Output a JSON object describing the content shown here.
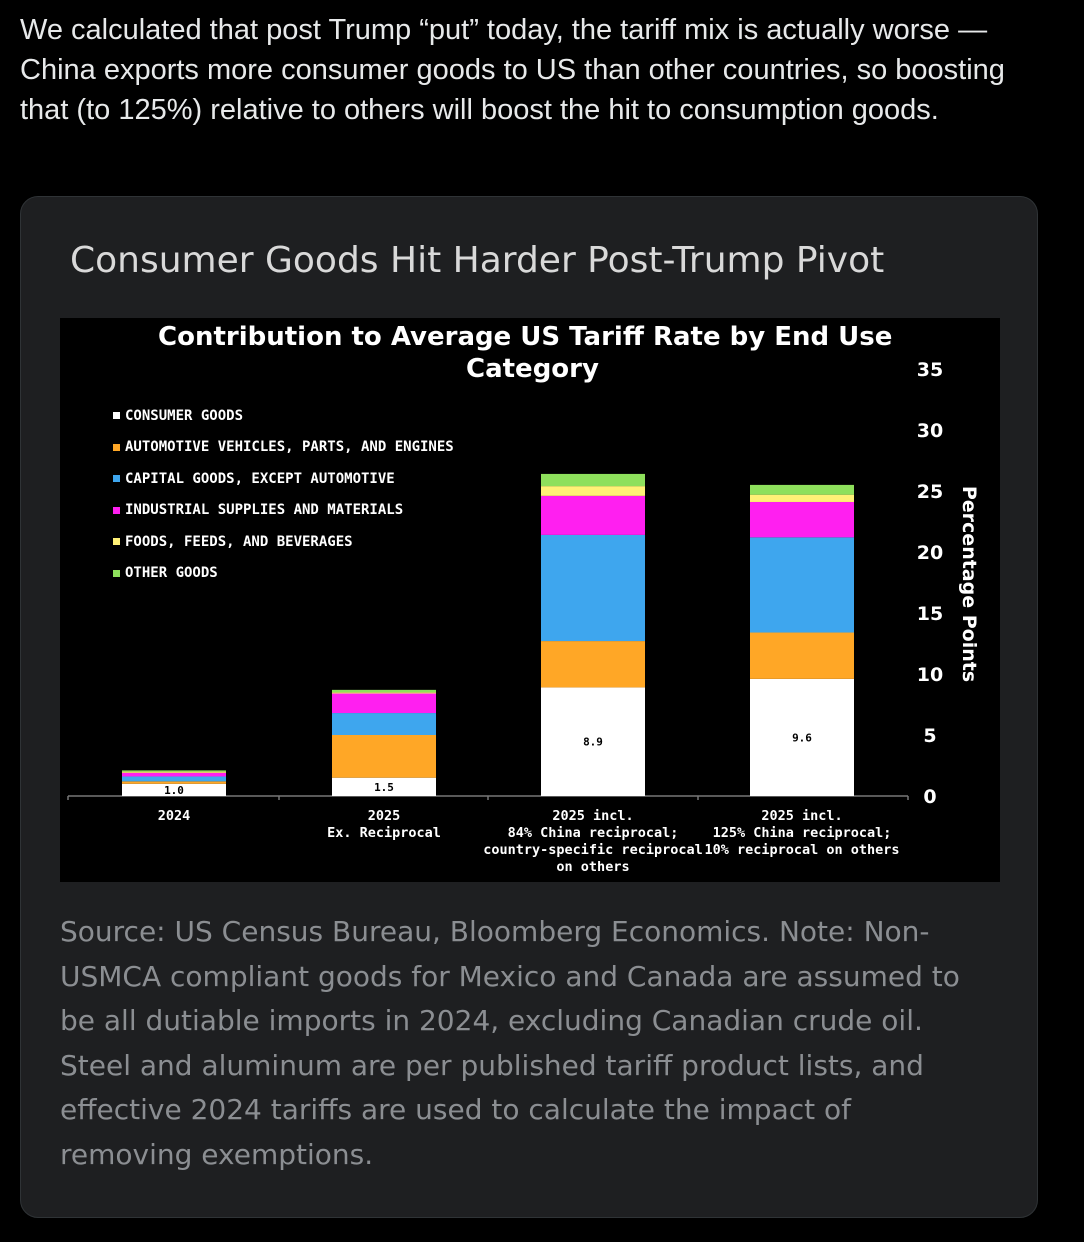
{
  "tweet": {
    "text": "We calculated that post Trump “put” today, the tariff mix is actually worse —China exports more consumer goods to US than other countries, so boosting that (to 125%) relative to others will boost the hit to consumption goods."
  },
  "card": {
    "title": "Consumer Goods Hit Harder Post-Trump Pivot",
    "source": "Source: US Census Bureau, Bloomberg Economics. Note: Non-USMCA compliant goods for Mexico and Canada are assumed to be all dutiable imports in 2024, excluding Canadian crude oil. Steel and aluminum are per published tariff product lists, and effective 2024 tariffs are used to calculate the impact of removing exemptions."
  },
  "chart_data": {
    "type": "bar",
    "stacked": true,
    "title_line1": "Contribution to Average US Tariff Rate by End Use",
    "title_line2": "Category",
    "ylabel": "Percentage Points",
    "ylim": [
      0,
      35
    ],
    "yticks": [
      0,
      5,
      10,
      15,
      20,
      25,
      30,
      35
    ],
    "grid": false,
    "y_axis_side": "right",
    "legend_position": "top-left",
    "categories": [
      [
        "2024"
      ],
      [
        "2025",
        "Ex. Reciprocal"
      ],
      [
        "2025 incl.",
        "84% China reciprocal;",
        "country-specific reciprocal",
        "on others"
      ],
      [
        "2025 incl.",
        "125% China reciprocal;",
        "10% reciprocal on others"
      ]
    ],
    "series": [
      {
        "name": "CONSUMER GOODS",
        "color": "#ffffff",
        "values": [
          1.0,
          1.5,
          8.9,
          9.6
        ]
      },
      {
        "name": "AUTOMOTIVE VEHICLES, PARTS, AND ENGINES",
        "color": "#ffa726",
        "values": [
          0.2,
          3.5,
          3.8,
          3.8
        ]
      },
      {
        "name": "CAPITAL GOODS, EXCEPT AUTOMOTIVE",
        "color": "#3ea6ee",
        "values": [
          0.4,
          1.8,
          8.7,
          7.8
        ]
      },
      {
        "name": "INDUSTRIAL SUPPLIES AND MATERIALS",
        "color": "#ff1ff0",
        "values": [
          0.3,
          1.6,
          3.2,
          2.9
        ]
      },
      {
        "name": "FOODS, FEEDS, AND BEVERAGES",
        "color": "#fff176",
        "values": [
          0.1,
          0.1,
          0.8,
          0.6
        ]
      },
      {
        "name": "OTHER GOODS",
        "color": "#8ee05c",
        "values": [
          0.1,
          0.2,
          1.0,
          0.8
        ]
      }
    ],
    "data_labels": [
      "1.0",
      "1.5",
      "8.9",
      "9.6"
    ]
  }
}
